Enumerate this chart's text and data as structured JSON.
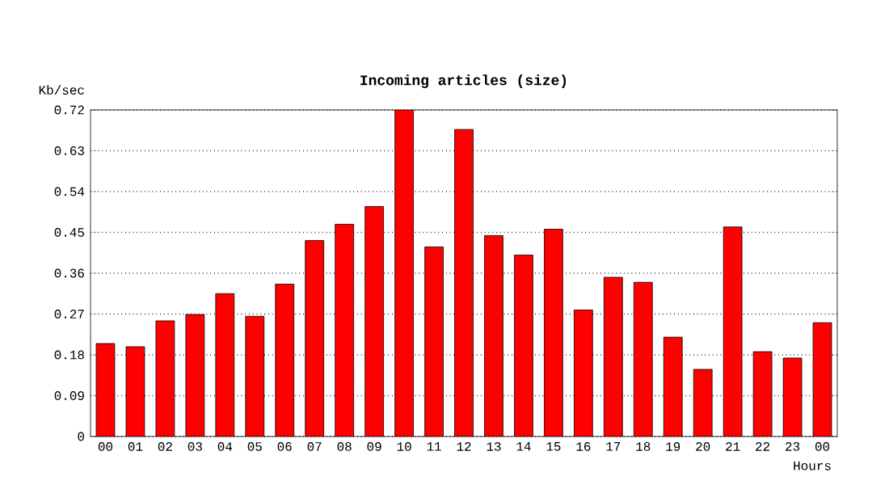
{
  "chart_data": {
    "type": "bar",
    "title": "Incoming articles (size)",
    "xlabel": "Hours",
    "ylabel": "Kb/sec",
    "categories": [
      "00",
      "01",
      "02",
      "03",
      "04",
      "05",
      "06",
      "07",
      "08",
      "09",
      "10",
      "11",
      "12",
      "13",
      "14",
      "15",
      "16",
      "17",
      "18",
      "19",
      "20",
      "21",
      "22",
      "23",
      "00"
    ],
    "values": [
      0.205,
      0.198,
      0.255,
      0.269,
      0.315,
      0.265,
      0.336,
      0.432,
      0.468,
      0.507,
      0.72,
      0.418,
      0.677,
      0.443,
      0.4,
      0.457,
      0.279,
      0.351,
      0.34,
      0.219,
      0.148,
      0.462,
      0.187,
      0.173,
      0.251
    ],
    "color": "#ff0000",
    "ylim": [
      0,
      0.72
    ],
    "yticks": [
      0,
      0.09,
      0.18,
      0.27,
      0.36,
      0.45,
      0.54,
      0.63,
      0.72
    ],
    "grid": "y"
  }
}
